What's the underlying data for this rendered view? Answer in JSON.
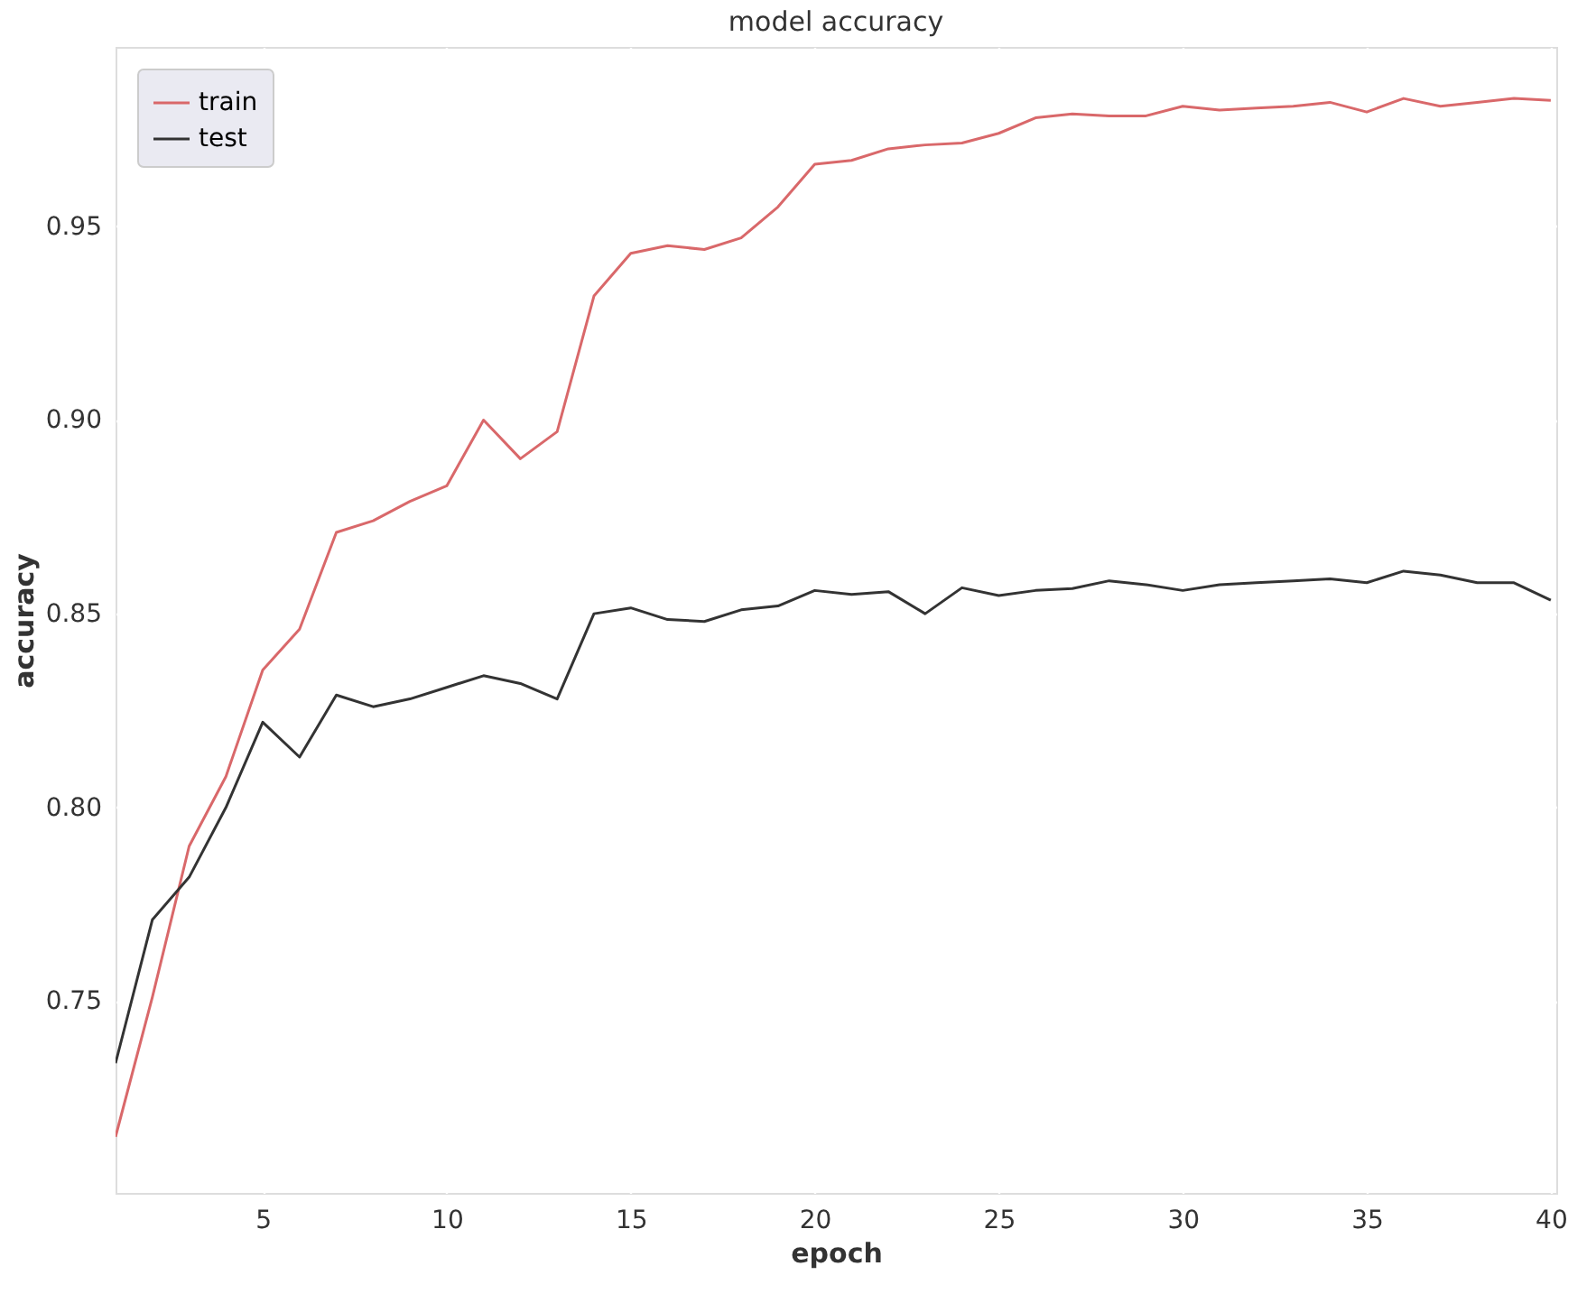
{
  "chart_data": {
    "type": "line",
    "title": "model accuracy",
    "xlabel": "epoch",
    "ylabel": "accuracy",
    "x": [
      1,
      2,
      3,
      4,
      5,
      6,
      7,
      8,
      9,
      10,
      11,
      12,
      13,
      14,
      15,
      16,
      17,
      18,
      19,
      20,
      21,
      22,
      23,
      24,
      25,
      26,
      27,
      28,
      29,
      30,
      31,
      32,
      33,
      34,
      35,
      36,
      37,
      38,
      39,
      40
    ],
    "series": [
      {
        "name": "train",
        "color": "#d9686a",
        "values": [
          0.715,
          0.751,
          0.79,
          0.808,
          0.8355,
          0.846,
          0.871,
          0.874,
          0.879,
          0.883,
          0.9,
          0.89,
          0.897,
          0.932,
          0.943,
          0.945,
          0.944,
          0.947,
          0.955,
          0.966,
          0.967,
          0.97,
          0.971,
          0.9715,
          0.974,
          0.978,
          0.979,
          0.9785,
          0.9785,
          0.981,
          0.98,
          0.9805,
          0.981,
          0.982,
          0.9795,
          0.983,
          0.981,
          0.982,
          0.983,
          0.9825
        ]
      },
      {
        "name": "test",
        "color": "#333333",
        "values": [
          0.734,
          0.771,
          0.782,
          0.8,
          0.822,
          0.813,
          0.829,
          0.826,
          0.828,
          0.831,
          0.834,
          0.832,
          0.828,
          0.85,
          0.8515,
          0.8485,
          0.848,
          0.851,
          0.852,
          0.856,
          0.855,
          0.8557,
          0.85,
          0.8567,
          0.8547,
          0.856,
          0.8565,
          0.8585,
          0.8575,
          0.856,
          0.8575,
          0.858,
          0.8585,
          0.859,
          0.858,
          0.861,
          0.86,
          0.858,
          0.858,
          0.8535
        ]
      }
    ],
    "xlim": [
      1,
      40.15
    ],
    "ylim": [
      0.7005,
      0.9963
    ],
    "xticks": [
      5,
      10,
      15,
      20,
      25,
      30,
      35,
      40
    ],
    "yticks": [
      0.75,
      {
        "value": 0.8,
        "label": "0.80"
      },
      0.85,
      {
        "value": 0.9,
        "label": "0.90"
      },
      0.95
    ],
    "grid": true,
    "legend": "top left",
    "line_style": "solid",
    "marker": "none"
  }
}
